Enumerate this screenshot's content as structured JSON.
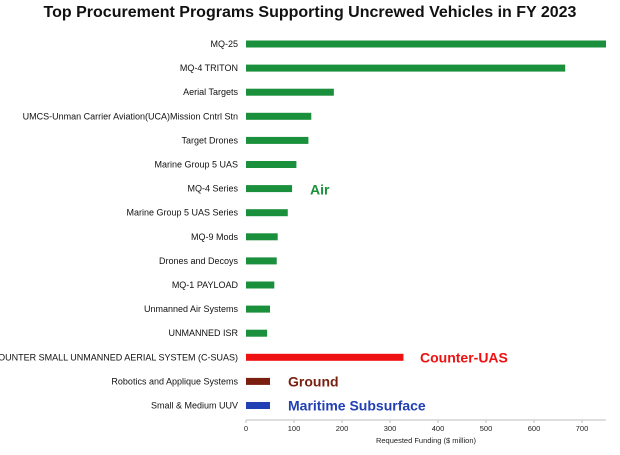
{
  "chart_data": {
    "type": "bar",
    "orientation": "horizontal",
    "title": "Top Procurement Programs Supporting Uncrewed Vehicles in FY 2023",
    "xlabel": "Requested Funding ($ million)",
    "ylabel": "",
    "xlim": [
      0,
      750
    ],
    "xticks": [
      0,
      100,
      200,
      300,
      400,
      500,
      600,
      700
    ],
    "grid": false,
    "categories": [
      "MQ-25",
      "MQ-4 TRITON",
      "Aerial Targets",
      "UMCS-Unman Carrier Aviation(UCA)Mission Cntrl Stn",
      "Target Drones",
      "Marine Group 5 UAS",
      "MQ-4 Series",
      "Marine Group 5 UAS Series",
      "MQ-9 Mods",
      "Drones and Decoys",
      "MQ-1 PAYLOAD",
      "Unmanned Air Systems",
      "UNMANNED ISR",
      "COUNTER SMALL UNMANNED AERIAL SYSTEM (C-SUAS)",
      "Robotics and Applique Systems",
      "Small & Medium UUV"
    ],
    "values": [
      750,
      665,
      183,
      136,
      130,
      105,
      96,
      87,
      66,
      64,
      59,
      50,
      44,
      328,
      50,
      50
    ],
    "groups": [
      "Air",
      "Air",
      "Air",
      "Air",
      "Air",
      "Air",
      "Air",
      "Air",
      "Air",
      "Air",
      "Air",
      "Air",
      "Air",
      "Counter-UAS",
      "Ground",
      "Maritime Subsurface"
    ],
    "group_colors": {
      "Air": "#1a8f3c",
      "Counter-UAS": "#ee1111",
      "Ground": "#7a1f10",
      "Maritime Subsurface": "#2140b4"
    },
    "annotations": [
      {
        "text": "Air",
        "color": "#1a8f3c"
      },
      {
        "text": "Counter-UAS",
        "color": "#ee1111"
      },
      {
        "text": "Ground",
        "color": "#7a1f10"
      },
      {
        "text": "Maritime Subsurface",
        "color": "#2140b4"
      }
    ]
  }
}
